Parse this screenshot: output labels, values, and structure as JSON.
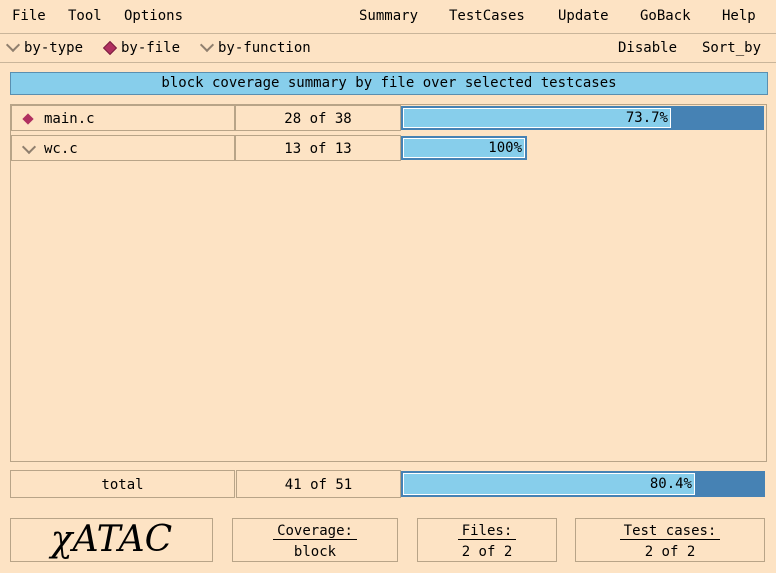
{
  "menu": {
    "left": [
      "File",
      "Tool",
      "Options"
    ],
    "right": [
      "Summary",
      "TestCases",
      "Update",
      "GoBack",
      "Help"
    ]
  },
  "view_modes": {
    "options": [
      "by-type",
      "by-file",
      "by-function"
    ],
    "selected": "by-file",
    "disable": "Disable",
    "sort_by": "Sort_by"
  },
  "banner": "block coverage summary by file over selected testcases",
  "rows": [
    {
      "name": "main.c",
      "count": "28 of 38",
      "pct_label": "73.7%",
      "pct": 73.7,
      "selected": true
    },
    {
      "name": "wc.c",
      "count": "13 of 13",
      "pct_label": "100%",
      "pct": 100,
      "selected": false
    }
  ],
  "total": {
    "label": "total",
    "count": "41 of 51",
    "pct_label": "80.4%",
    "pct": 80.4
  },
  "footer": {
    "logo": "χATAC",
    "coverage": {
      "label": "Coverage:",
      "value": "block"
    },
    "files": {
      "label": "Files:",
      "value": "2 of 2"
    },
    "testcases": {
      "label": "Test cases:",
      "value": "2 of 2"
    }
  },
  "colors": {
    "background": "#fde3c4",
    "bar_fill": "#87ceeb",
    "bar_bg": "#4682b4",
    "selected_marker": "#b03060"
  }
}
